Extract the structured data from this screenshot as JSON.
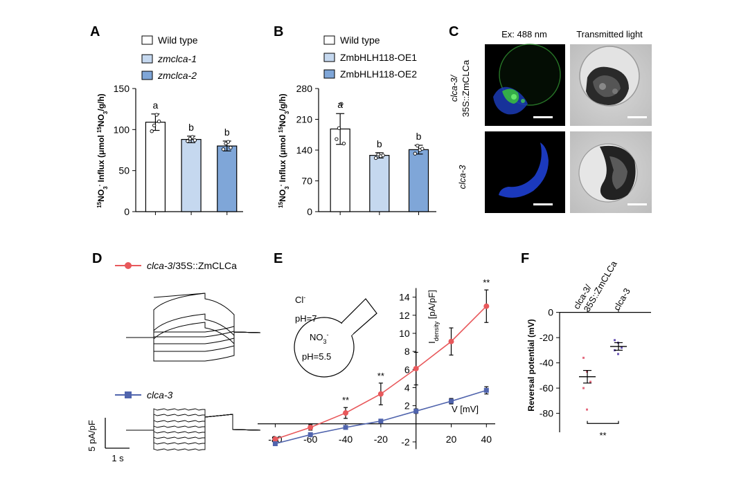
{
  "panels": {
    "A": {
      "letter": "A",
      "legend": [
        "Wild type",
        "zmclca-1",
        "zmclca-2"
      ],
      "ylabel_parts": [
        "15",
        "NO",
        "3",
        "-",
        " Influx (μmol ",
        "15",
        "NO",
        "3",
        "/g/h)"
      ],
      "sig_letters": [
        "a",
        "b",
        "b"
      ]
    },
    "B": {
      "letter": "B",
      "legend": [
        "Wild type",
        "ZmbHLH118-OE1",
        "ZmbHLH118-OE2"
      ],
      "ylabel_parts": [
        "15",
        "NO",
        "3",
        "-",
        " Influx (μmol ",
        "15",
        "NO",
        "3",
        "/g/h)"
      ],
      "sig_letters": [
        "a",
        "b",
        "b"
      ]
    },
    "C": {
      "letter": "C",
      "col_titles": [
        "Ex: 488 nm",
        "Transmitted light"
      ],
      "row1_label_line1": "clca-3/",
      "row1_label_line2": "35S::ZmCLCa",
      "row2_label": "clca-3"
    },
    "D": {
      "letter": "D",
      "legend1_italic": "clca-3",
      "legend1_rest": "/35S::ZmCLCa",
      "legend2": "clca-3",
      "scale_y": "5 pA/pF",
      "scale_x": "1 s"
    },
    "E": {
      "letter": "E",
      "cl_label": "Cl",
      "cl_sup": "-",
      "ph_out": "pH=7",
      "no3_label": "NO",
      "no3_sub": "3",
      "no3_sup": "-",
      "ph_in": "pH=5.5",
      "ylabel_main": "I",
      "ylabel_sub": "density",
      "ylabel_unit": " [pA/pF]",
      "xlabel": "V [mV]",
      "stars": [
        "**",
        "**",
        "**"
      ]
    },
    "F": {
      "letter": "F",
      "col_labels_line1": "clca-3/",
      "col_labels_line2": "35S::ZmCLCa",
      "col2_label": "clca-3",
      "ylabel": "Reversal potential (mV)",
      "stars": "**"
    }
  },
  "colors": {
    "wild_type": "#ffffff",
    "light_blue": "#c5d8ef",
    "mid_blue": "#7fa6d8",
    "red": "#e8585b",
    "blue": "#5064ad",
    "purple_dot": "#6a55b5",
    "pink_dot": "#e46a7f"
  },
  "chart_data": [
    {
      "id": "A",
      "type": "bar",
      "categories": [
        "Wild type",
        "zmclca-1",
        "zmclca-2"
      ],
      "values": [
        109,
        88,
        80
      ],
      "errors": [
        10,
        4,
        6
      ],
      "points": [
        [
          98,
          105,
          118,
          110
        ],
        [
          86,
          89,
          91,
          87
        ],
        [
          76,
          83,
          85,
          78
        ]
      ],
      "ylim": [
        0,
        150
      ],
      "yticks": [
        0,
        50,
        100,
        150
      ],
      "ylabel": "15NO3- Influx (μmol 15NO3/g/h)"
    },
    {
      "id": "B",
      "type": "bar",
      "categories": [
        "Wild type",
        "ZmbHLH118-OE1",
        "ZmbHLH118-OE2"
      ],
      "values": [
        188,
        128,
        141
      ],
      "errors": [
        35,
        6,
        10
      ],
      "points": [
        [
          165,
          190,
          245,
          155
        ],
        [
          122,
          130,
          126,
          128
        ],
        [
          132,
          150,
          140,
          143
        ]
      ],
      "ylim": [
        0,
        280
      ],
      "yticks": [
        0,
        70,
        140,
        210,
        280
      ],
      "ylabel": "15NO3- Influx (μmol 15NO3/g/h)"
    },
    {
      "id": "E",
      "type": "line",
      "xlabel": "V [mV]",
      "ylabel": "I density [pA/pF]",
      "xlim": [
        -90,
        45
      ],
      "ylim": [
        -3,
        15.5
      ],
      "xticks": [
        -80,
        -60,
        -40,
        -20,
        20,
        40
      ],
      "yticks": [
        -2,
        2,
        4,
        6,
        8,
        10,
        12,
        14
      ],
      "series": [
        {
          "name": "clca-3/35S::ZmCLCa",
          "color": "#e8585b",
          "x": [
            -80,
            -60,
            -40,
            -20,
            0,
            20,
            40
          ],
          "y": [
            -1.7,
            -0.4,
            1.2,
            3.3,
            6.1,
            9.1,
            13.0
          ],
          "err": [
            0.2,
            0.3,
            0.6,
            1.2,
            1.8,
            1.5,
            1.8
          ]
        },
        {
          "name": "clca-3",
          "color": "#5064ad",
          "x": [
            -80,
            -60,
            -40,
            -20,
            0,
            20,
            40
          ],
          "y": [
            -2.2,
            -1.2,
            -0.4,
            0.3,
            1.4,
            2.5,
            3.7
          ],
          "err": [
            0.15,
            0.15,
            0.15,
            0.2,
            0.25,
            0.3,
            0.4
          ]
        }
      ],
      "significance_at_x": [
        -40,
        -20,
        40
      ]
    },
    {
      "id": "F",
      "type": "scatter",
      "categories": [
        "clca-3/35S::ZmCLCa",
        "clca-3"
      ],
      "means": [
        -51,
        -27
      ],
      "sem": [
        5,
        3
      ],
      "points": [
        [
          -36,
          -47,
          -55,
          -60,
          -77
        ],
        [
          -22,
          -24,
          -28,
          -30,
          -33
        ]
      ],
      "ylim": [
        -95,
        2
      ],
      "yticks": [
        0,
        -20,
        -40,
        -60,
        -80
      ],
      "ylabel": "Reversal potential (mV)"
    }
  ]
}
